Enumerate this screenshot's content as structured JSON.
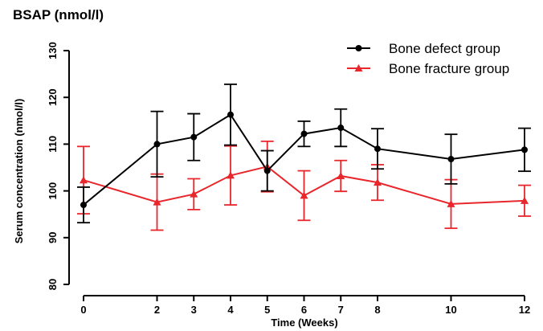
{
  "chart_data": {
    "type": "line",
    "title": "BSAP (nmol/l)",
    "xlabel": "Time (Weeks)",
    "ylabel": "Serum concentration (nmol/l)",
    "x": [
      0,
      2,
      3,
      4,
      5,
      6,
      7,
      8,
      10,
      12
    ],
    "x_ticks": [
      "0",
      "2",
      "3",
      "4",
      "5",
      "6",
      "7",
      "8",
      "10",
      "12"
    ],
    "y_ticks": [
      "80",
      "90",
      "100",
      "110",
      "120",
      "130"
    ],
    "xlim": [
      0,
      12
    ],
    "ylim": [
      80,
      130
    ],
    "grid": false,
    "legend_position": "top-right",
    "series": [
      {
        "name": "Bone defect group",
        "color": "#000000",
        "marker": "circle",
        "values": [
          97,
          110,
          111.5,
          116.3,
          104.3,
          112.2,
          113.5,
          109,
          106.8,
          108.8
        ],
        "error": [
          3.8,
          7,
          5,
          6.5,
          4.3,
          2.7,
          4,
          4.3,
          5.3,
          4.6
        ]
      },
      {
        "name": "Bone fracture group",
        "color": "#e8262b",
        "marker": "triangle",
        "values": [
          102.3,
          97.6,
          99.3,
          103.3,
          105.2,
          99,
          103.2,
          101.8,
          97.2,
          97.9
        ],
        "error": [
          7.2,
          6,
          3.3,
          6.3,
          5.4,
          5.3,
          3.3,
          3.8,
          5.2,
          3.3
        ]
      }
    ]
  }
}
